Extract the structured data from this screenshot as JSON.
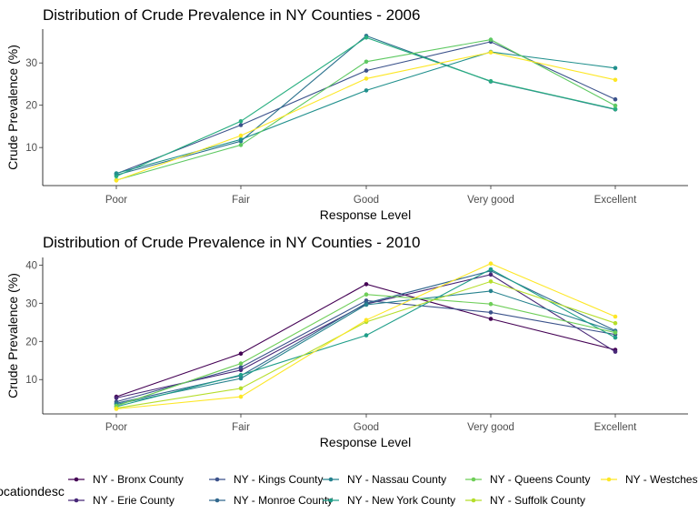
{
  "chart_data": [
    {
      "type": "line",
      "title": "Distribution of Crude Prevalence in NY Counties - 2006",
      "xlabel": "Response Level",
      "ylabel": "Crude Prevalence (%)",
      "categories": [
        "Poor",
        "Fair",
        "Good",
        "Very good",
        "Excellent"
      ],
      "yticks": [
        10,
        20,
        30
      ],
      "ylim": [
        1,
        38
      ],
      "series": [
        {
          "name": "NY - Kings County",
          "color": "#3b528b",
          "values": [
            3.8,
            15.3,
            28.2,
            35.0,
            21.4
          ]
        },
        {
          "name": "NY - Nassau County",
          "color": "#2c728e",
          "values": [
            3.5,
            11.5,
            36.4,
            25.6,
            19.0
          ]
        },
        {
          "name": "NY - New York County",
          "color": "#28ae80",
          "values": [
            3.2,
            16.2,
            36.0,
            25.7,
            19.1
          ]
        },
        {
          "name": "NY - Monroe County",
          "color": "#21908d",
          "values": [
            3.9,
            11.9,
            23.5,
            32.6,
            28.8
          ]
        },
        {
          "name": "NY - Queens County",
          "color": "#5ec962",
          "values": [
            2.3,
            10.6,
            30.3,
            35.5,
            19.9
          ]
        },
        {
          "name": "NY - Westchester County",
          "color": "#fde725",
          "values": [
            2.2,
            12.8,
            26.3,
            32.5,
            26.0
          ]
        }
      ]
    },
    {
      "type": "line",
      "title": "Distribution of Crude Prevalence in NY Counties - 2010",
      "xlabel": "Response Level",
      "ylabel": "Crude Prevalence (%)",
      "categories": [
        "Poor",
        "Fair",
        "Good",
        "Very good",
        "Excellent"
      ],
      "yticks": [
        10,
        20,
        30,
        40
      ],
      "ylim": [
        1,
        42
      ],
      "series": [
        {
          "name": "NY - Bronx County",
          "color": "#440154",
          "values": [
            5.5,
            16.8,
            35.0,
            25.9,
            17.8
          ]
        },
        {
          "name": "NY - Erie County",
          "color": "#482878",
          "values": [
            5.2,
            12.5,
            29.8,
            37.5,
            17.3
          ]
        },
        {
          "name": "NY - Kings County",
          "color": "#3b528b",
          "values": [
            4.2,
            13.2,
            30.7,
            27.6,
            21.8
          ]
        },
        {
          "name": "NY - Monroe County",
          "color": "#31688e",
          "values": [
            3.8,
            11.0,
            30.0,
            38.5,
            22.8
          ]
        },
        {
          "name": "NY - Nassau County",
          "color": "#26828e",
          "values": [
            3.5,
            10.3,
            29.6,
            33.2,
            22.6
          ]
        },
        {
          "name": "NY - New York County",
          "color": "#1f9e89",
          "values": [
            2.9,
            11.2,
            21.6,
            38.9,
            21.0
          ]
        },
        {
          "name": "NY - Queens County",
          "color": "#6ece58",
          "values": [
            3.1,
            14.2,
            32.3,
            29.8,
            22.3
          ]
        },
        {
          "name": "NY - Suffolk County",
          "color": "#b5de2b",
          "values": [
            2.5,
            7.7,
            25.1,
            35.7,
            24.8
          ]
        },
        {
          "name": "NY - Westchester County",
          "color": "#fde725",
          "values": [
            2.3,
            5.5,
            25.6,
            40.4,
            26.5
          ]
        }
      ]
    }
  ],
  "legend": {
    "title": "locationdesc",
    "entries": [
      {
        "label": "NY - Bronx County",
        "color": "#440154"
      },
      {
        "label": "NY - Erie County",
        "color": "#482878"
      },
      {
        "label": "NY - Kings County",
        "color": "#3b528b"
      },
      {
        "label": "NY - Monroe County",
        "color": "#31688e"
      },
      {
        "label": "NY - Nassau County",
        "color": "#26828e"
      },
      {
        "label": "NY - New York County",
        "color": "#1f9e89"
      },
      {
        "label": "NY - Queens County",
        "color": "#6ece58"
      },
      {
        "label": "NY - Suffolk County",
        "color": "#b5de2b"
      },
      {
        "label": "NY - Westchester County",
        "color": "#fde725"
      }
    ]
  }
}
